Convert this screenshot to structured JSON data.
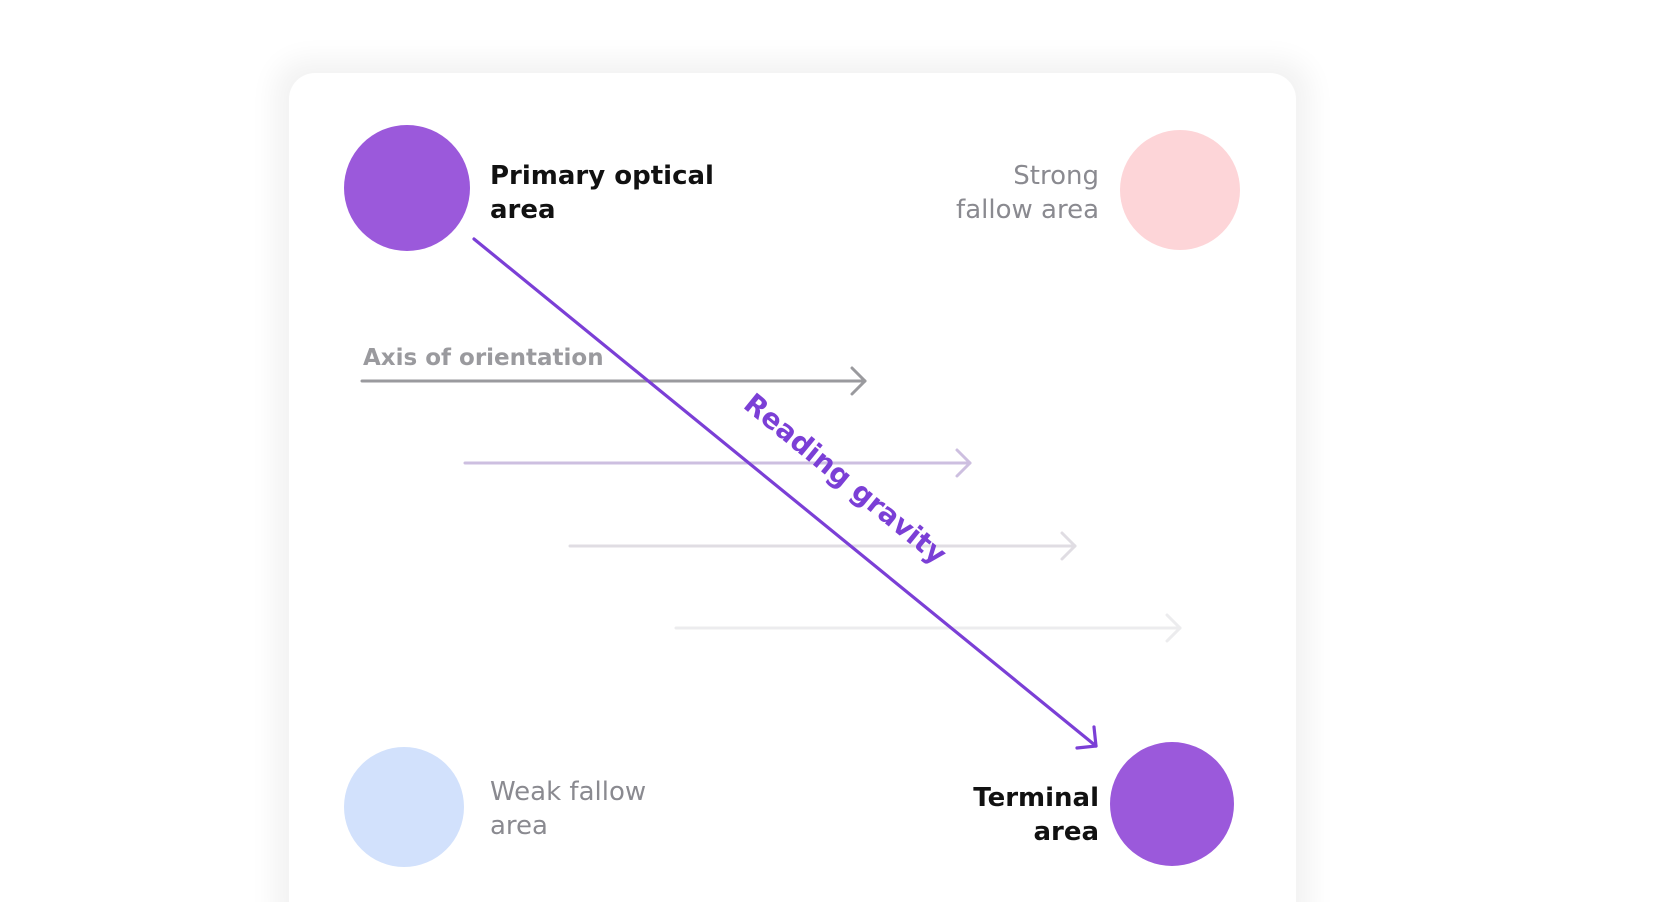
{
  "areas": {
    "primary": {
      "line1": "Primary optical",
      "line2": "area",
      "color": "#9b59db"
    },
    "strong_fallow": {
      "line1": "Strong",
      "line2": "fallow area",
      "color": "#fdd5d8"
    },
    "weak_fallow": {
      "line1": "Weak fallow",
      "line2": "area",
      "color": "#d2e1fc"
    },
    "terminal": {
      "line1": "Terminal",
      "line2": "area",
      "color": "#9b59db"
    }
  },
  "axis_label": "Axis of orientation",
  "gravity_label": "Reading gravity",
  "colors": {
    "gravity": "#7b3fd6",
    "axis": "#9a9a9e"
  }
}
